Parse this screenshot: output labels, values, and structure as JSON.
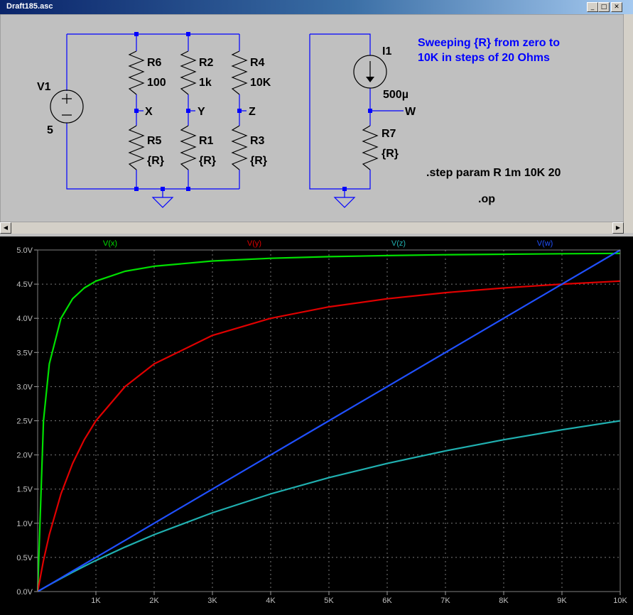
{
  "window": {
    "title": "Draft185.asc",
    "minimize_glyph": "_",
    "maximize_glyph": "□",
    "close_glyph": "✕"
  },
  "schematic": {
    "source": {
      "name": "V1",
      "value": "5"
    },
    "current_source": {
      "name": "I1",
      "value": "500µ"
    },
    "resistors": [
      {
        "name": "R6",
        "value": "100"
      },
      {
        "name": "R2",
        "value": "1k"
      },
      {
        "name": "R4",
        "value": "10K"
      },
      {
        "name": "R5",
        "value": "{R}"
      },
      {
        "name": "R1",
        "value": "{R}"
      },
      {
        "name": "R3",
        "value": "{R}"
      },
      {
        "name": "R7",
        "value": "{R}"
      }
    ],
    "nodes": [
      "X",
      "Y",
      "Z",
      "W"
    ],
    "comment_lines": [
      "Sweeping {R} from zero to",
      "10K in steps of 20 Ohms"
    ],
    "directives": [
      ".step param R 1m 10K 20",
      ".op"
    ],
    "colors": {
      "wire": "#0000ff",
      "component": "#000000",
      "comment": "#0000ff",
      "canvas": "#c0c0c0"
    }
  },
  "scrollbar": {
    "left_arrow": "◀",
    "right_arrow": "▶"
  },
  "chart_data": {
    "type": "line",
    "title": "",
    "xlabel": "",
    "ylabel": "",
    "xlim": [
      0,
      10000
    ],
    "ylim": [
      0,
      5
    ],
    "grid": true,
    "x_ticks": [
      "1K",
      "2K",
      "3K",
      "4K",
      "5K",
      "6K",
      "7K",
      "8K",
      "9K",
      "10K"
    ],
    "y_ticks": [
      "0.0V",
      "0.5V",
      "1.0V",
      "1.5V",
      "2.0V",
      "2.5V",
      "3.0V",
      "3.5V",
      "4.0V",
      "4.5V",
      "5.0V"
    ],
    "x": [
      0,
      100,
      200,
      400,
      600,
      800,
      1000,
      1500,
      2000,
      3000,
      4000,
      5000,
      6000,
      7000,
      8000,
      9000,
      10000
    ],
    "series": [
      {
        "name": "V(x)",
        "color": "#00e000",
        "values": [
          0,
          2.5,
          3.333,
          4,
          4.286,
          4.444,
          4.545,
          4.688,
          4.762,
          4.839,
          4.878,
          4.902,
          4.918,
          4.93,
          4.938,
          4.945,
          4.95
        ]
      },
      {
        "name": "V(y)",
        "color": "#e00000",
        "values": [
          0,
          0.455,
          0.833,
          1.429,
          1.875,
          2.222,
          2.5,
          3.0,
          3.333,
          3.75,
          4.0,
          4.167,
          4.286,
          4.375,
          4.444,
          4.5,
          4.545
        ]
      },
      {
        "name": "V(z)",
        "color": "#20b0b0",
        "values": [
          0,
          0.0495,
          0.098,
          0.192,
          0.283,
          0.37,
          0.455,
          0.652,
          0.833,
          1.154,
          1.429,
          1.667,
          1.875,
          2.059,
          2.222,
          2.368,
          2.5
        ]
      },
      {
        "name": "V(w)",
        "color": "#2050ff",
        "values": [
          0,
          0.05,
          0.1,
          0.2,
          0.3,
          0.4,
          0.5,
          0.75,
          1.0,
          1.5,
          2.0,
          2.5,
          3.0,
          3.5,
          4.0,
          4.5,
          5.0
        ]
      }
    ],
    "legend": "top"
  }
}
